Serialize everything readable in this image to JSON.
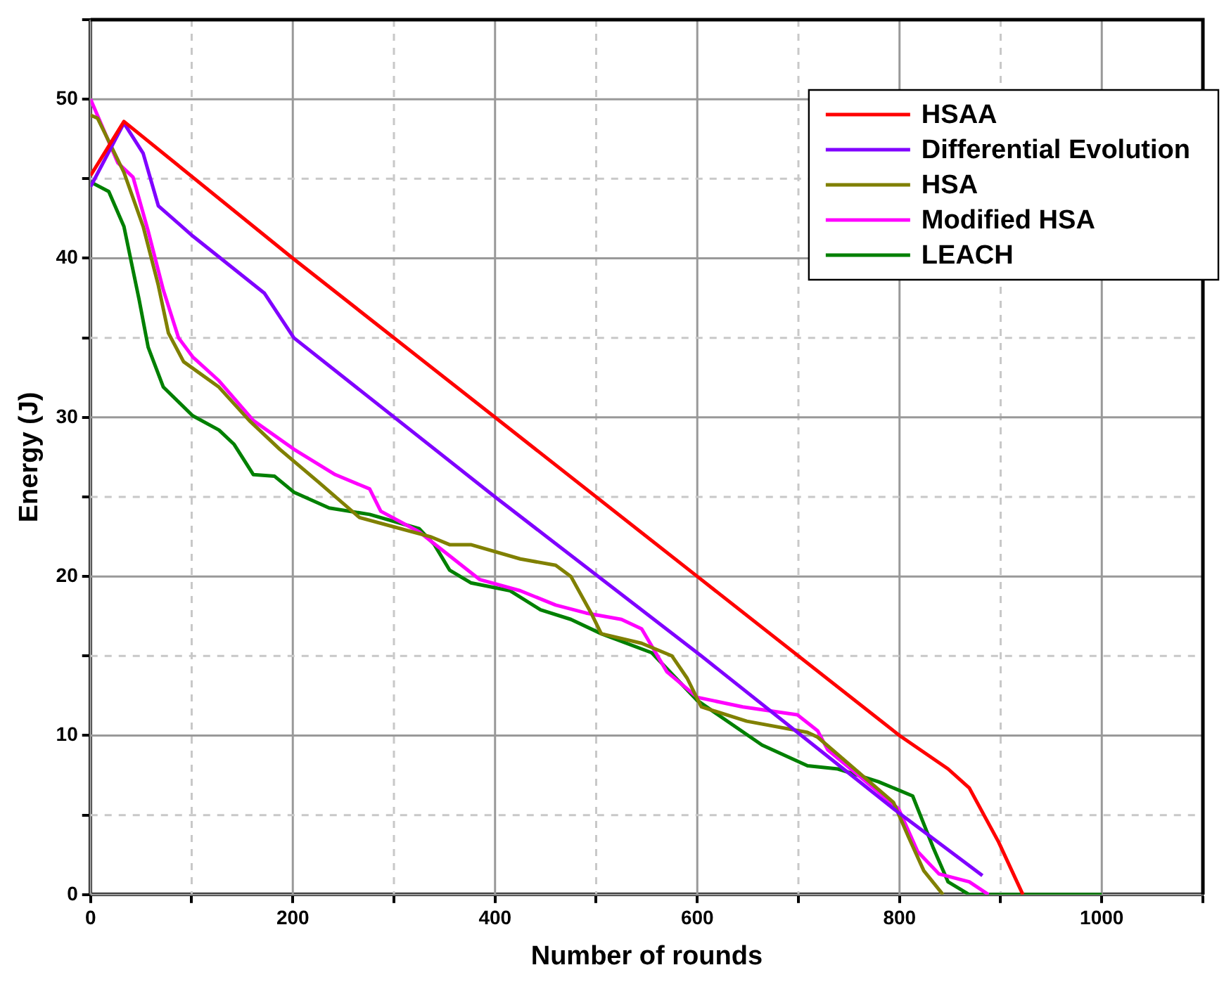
{
  "chart_data": {
    "type": "line",
    "xlabel": "Number of rounds",
    "ylabel": "Energy (J)",
    "xlim": [
      0,
      1100
    ],
    "xticks": [
      0,
      {
        "value": 100,
        "label": null
      },
      200,
      {
        "value": 300,
        "label": null
      },
      400,
      {
        "value": 500,
        "label": null
      },
      600,
      {
        "value": 700,
        "label": null
      },
      800,
      {
        "value": 900,
        "label": null
      },
      1000,
      {
        "value": 1100,
        "label": null
      }
    ],
    "ylim": [
      0,
      55
    ],
    "yticks": [
      0,
      {
        "value": 5,
        "label": null
      },
      10,
      {
        "value": 15,
        "label": null
      },
      20,
      {
        "value": 25,
        "label": null
      },
      30,
      {
        "value": 35,
        "label": null
      },
      40,
      {
        "value": 45,
        "label": null
      },
      50,
      {
        "value": 55,
        "label": null
      }
    ],
    "grid": true,
    "legend": "top right",
    "series": [
      {
        "name": "HSAA",
        "color": "#ff0000",
        "x": [
          0,
          33,
          200,
          400,
          600,
          800,
          848,
          869,
          898,
          922
        ],
        "values": [
          45.2,
          48.6,
          40,
          30,
          20,
          10,
          7.9,
          6.7,
          3.3,
          0
        ]
      },
      {
        "name": "Differential Evolution",
        "color": "#8000ff",
        "x": [
          0,
          33,
          52,
          67,
          101,
          172,
          201,
          400,
          604,
          800,
          882
        ],
        "values": [
          44.5,
          48.5,
          46.6,
          43.3,
          41.4,
          37.8,
          35,
          25,
          15,
          5.1,
          1.2
        ]
      },
      {
        "name": "HSA",
        "color": "#808000",
        "x": [
          0,
          7,
          33,
          52,
          67,
          77,
          92,
          127,
          157,
          187,
          226,
          266,
          301,
          336,
          355,
          376,
          425,
          460,
          475,
          495,
          505,
          545,
          575,
          590,
          604,
          649,
          709,
          719,
          794,
          809,
          824,
          843
        ],
        "values": [
          49,
          48.8,
          45.4,
          42,
          38.3,
          35.3,
          33.5,
          31.9,
          29.8,
          28,
          25.9,
          23.7,
          23.1,
          22.5,
          22,
          22,
          21.1,
          20.7,
          20,
          17.7,
          16.4,
          15.8,
          15,
          13.6,
          11.8,
          10.9,
          10.2,
          9.9,
          5.8,
          3.6,
          1.5,
          0
        ]
      },
      {
        "name": "Modified HSA",
        "color": "#ff00ff",
        "x": [
          0,
          27,
          42,
          57,
          72,
          87,
          101,
          127,
          161,
          201,
          242,
          276,
          287,
          325,
          355,
          385,
          425,
          460,
          490,
          525,
          545,
          570,
          600,
          645,
          699,
          719,
          729,
          799,
          818,
          839,
          869,
          888
        ],
        "values": [
          50,
          46,
          45.1,
          41.7,
          38,
          35,
          33.8,
          32.3,
          29.8,
          28,
          26.4,
          25.5,
          24.1,
          22.8,
          21.3,
          19.8,
          19.1,
          18.2,
          17.7,
          17.3,
          16.7,
          14,
          12.4,
          11.8,
          11.3,
          10.3,
          9.1,
          5.4,
          2.7,
          1.3,
          0.8,
          0
        ]
      },
      {
        "name": "LEACH",
        "color": "#008000",
        "x": [
          0,
          18,
          33,
          48,
          57,
          72,
          101,
          127,
          142,
          161,
          182,
          201,
          236,
          276,
          325,
          340,
          355,
          376,
          415,
          445,
          475,
          505,
          555,
          600,
          664,
          709,
          739,
          779,
          813,
          833,
          848,
          869,
          1000
        ],
        "values": [
          44.8,
          44.2,
          42,
          37.4,
          34.4,
          31.9,
          30.1,
          29.2,
          28.3,
          26.4,
          26.3,
          25.3,
          24.3,
          23.9,
          23,
          22,
          20.4,
          19.6,
          19.1,
          17.9,
          17.3,
          16.4,
          15.2,
          12.2,
          9.4,
          8.1,
          7.9,
          7.1,
          6.2,
          3,
          0.8,
          0,
          0
        ]
      }
    ]
  }
}
